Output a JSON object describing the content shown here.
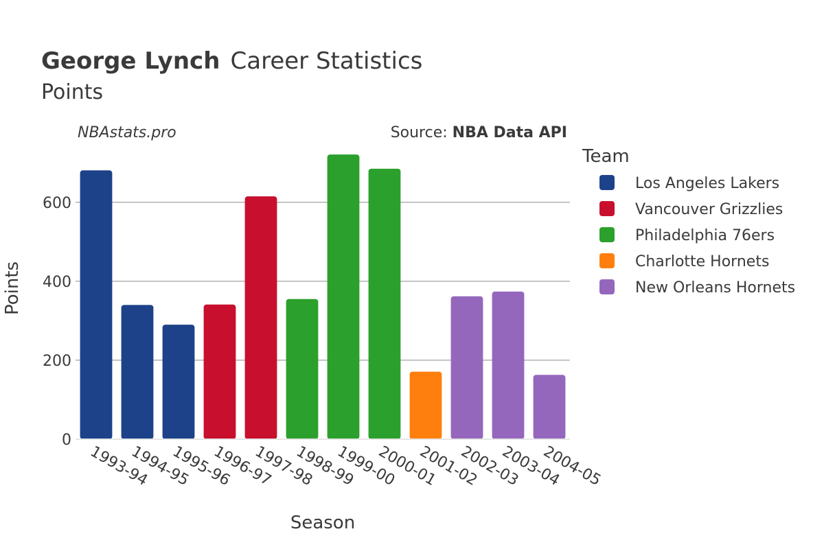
{
  "chart_data": {
    "type": "bar",
    "title_bold": "George Lynch",
    "title_rest": "Career Statistics",
    "subtitle": "Points",
    "credit": "NBAstats.pro",
    "source_prefix": "Source: ",
    "source_name": "NBA Data API",
    "xlabel": "Season",
    "ylabel": "Points",
    "ylim": [
      0,
      730
    ],
    "yticks": [
      0,
      200,
      400,
      600
    ],
    "grid": true,
    "legend_title": "Team",
    "legend_position": "right",
    "categories": [
      "1993-94",
      "1994-95",
      "1995-96",
      "1996-97",
      "1997-98",
      "1998-99",
      "1999-00",
      "2000-01",
      "2001-02",
      "2002-03",
      "2003-04",
      "2004-05"
    ],
    "values": [
      681,
      340,
      290,
      341,
      615,
      355,
      721,
      685,
      171,
      362,
      374,
      163
    ],
    "bar_teams": [
      0,
      0,
      0,
      1,
      1,
      2,
      2,
      2,
      3,
      4,
      4,
      4
    ],
    "teams": [
      {
        "name": "Los Angeles Lakers",
        "color": "#1d428a"
      },
      {
        "name": "Vancouver Grizzlies",
        "color": "#c8102e"
      },
      {
        "name": "Philadelphia 76ers",
        "color": "#2ca02c"
      },
      {
        "name": "Charlotte Hornets",
        "color": "#ff7f0e"
      },
      {
        "name": "New Orleans Hornets",
        "color": "#9467bd"
      }
    ]
  }
}
